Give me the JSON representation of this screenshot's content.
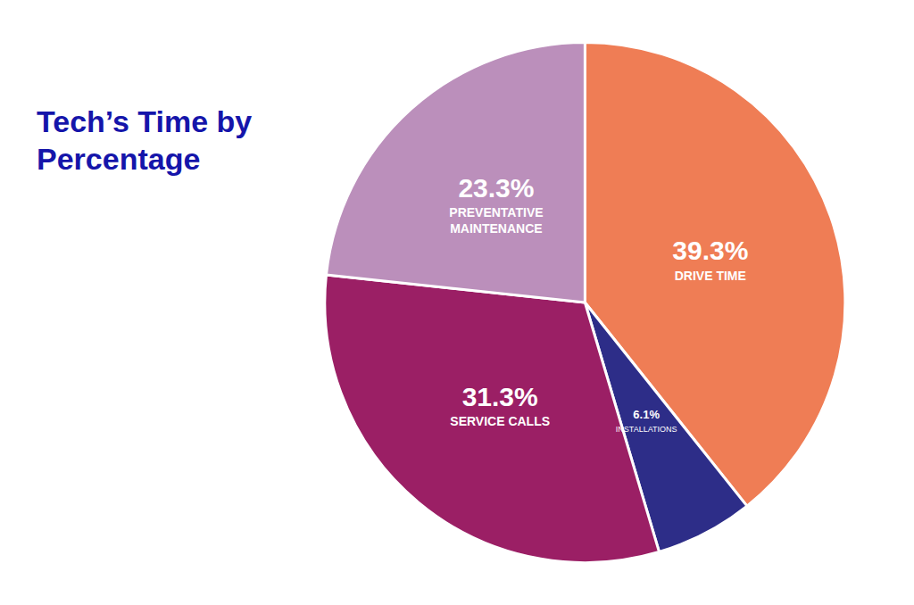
{
  "chart_data": {
    "type": "pie",
    "title": "Tech’s Time by\nPercentage",
    "categories": [
      "DRIVE TIME",
      "INSTALLATIONS",
      "SERVICE CALLS",
      "PREVENTATIVE\nMAINTENANCE"
    ],
    "values": [
      39.3,
      6.1,
      31.3,
      23.3
    ],
    "value_labels": [
      "39.3%",
      "6.1%",
      "31.3%",
      "23.3%"
    ],
    "colors": [
      "#EF7D55",
      "#2D2D88",
      "#9B1F65",
      "#BB8FBB"
    ],
    "data_labels": true
  }
}
